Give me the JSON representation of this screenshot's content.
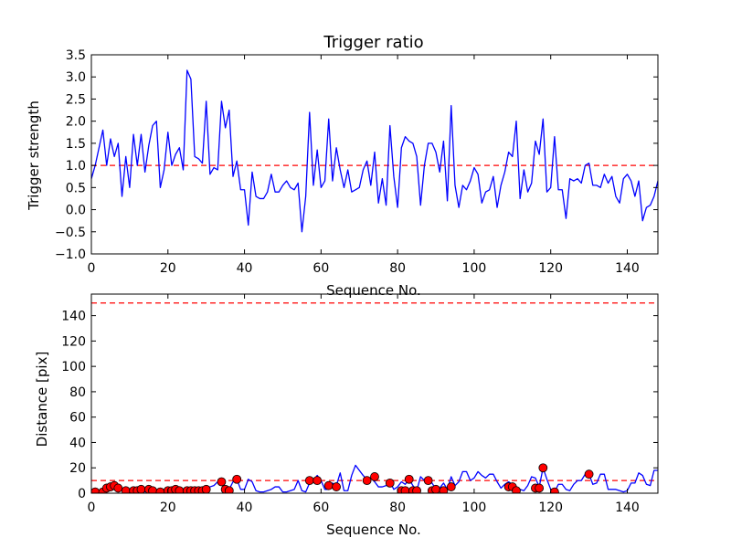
{
  "colors": {
    "series": "#0000ff",
    "threshold": "#ff0000",
    "marker_fill": "#ff0000",
    "marker_edge": "#000000",
    "axes": "#000000",
    "background": "#ffffff"
  },
  "chart_data": [
    {
      "type": "line",
      "title": "Trigger ratio",
      "xlabel": "Sequence No.",
      "ylabel": "Trigger strength",
      "xlim": [
        0,
        148
      ],
      "ylim": [
        -1.0,
        3.5
      ],
      "xticks": [
        0,
        20,
        40,
        60,
        80,
        100,
        120,
        140
      ],
      "xtick_labels": [
        "0",
        "20",
        "40",
        "60",
        "80",
        "100",
        "120",
        "140"
      ],
      "yticks": [
        -1.0,
        -0.5,
        0.0,
        0.5,
        1.0,
        1.5,
        2.0,
        2.5,
        3.0,
        3.5
      ],
      "ytick_labels": [
        "−1.0",
        "−0.5",
        "0.0",
        "0.5",
        "1.0",
        "1.5",
        "2.0",
        "2.5",
        "3.0",
        "3.5"
      ],
      "grid": false,
      "series": [
        {
          "x": [
            0,
            1,
            2,
            3,
            4,
            5,
            6,
            7,
            8,
            9,
            10,
            11,
            12,
            13,
            14,
            15,
            16,
            17,
            18,
            19,
            20,
            21,
            22,
            23,
            24,
            25,
            26,
            27,
            28,
            29,
            30,
            31,
            32,
            33,
            34,
            35,
            36,
            37,
            38,
            39,
            40,
            41,
            42,
            43,
            44,
            45,
            46,
            47,
            48,
            49,
            50,
            51,
            52,
            53,
            54,
            55,
            56,
            57,
            58,
            59,
            60,
            61,
            62,
            63,
            64,
            65,
            66,
            67,
            68,
            69,
            70,
            71,
            72,
            73,
            74,
            75,
            76,
            77,
            78,
            79,
            80,
            81,
            82,
            83,
            84,
            85,
            86,
            87,
            88,
            89,
            90,
            91,
            92,
            93,
            94,
            95,
            96,
            97,
            98,
            99,
            100,
            101,
            102,
            103,
            104,
            105,
            106,
            107,
            108,
            109,
            110,
            111,
            112,
            113,
            114,
            115,
            116,
            117,
            118,
            119,
            120,
            121,
            122,
            123,
            124,
            125,
            126,
            127,
            128,
            129,
            130,
            131,
            132,
            133,
            134,
            135,
            136,
            137,
            138,
            139,
            140,
            141,
            142,
            143,
            144,
            145,
            146,
            147,
            148
          ],
          "values": [
            0.7,
            1.0,
            1.4,
            1.8,
            1.0,
            1.6,
            1.2,
            1.5,
            0.3,
            1.2,
            0.5,
            1.7,
            1.0,
            1.7,
            0.85,
            1.45,
            1.9,
            2.0,
            0.5,
            0.9,
            1.75,
            1.0,
            1.25,
            1.4,
            0.9,
            3.15,
            2.95,
            1.2,
            1.15,
            1.05,
            2.45,
            0.8,
            0.95,
            0.9,
            2.45,
            1.85,
            2.25,
            0.75,
            1.1,
            0.45,
            0.45,
            -0.35,
            0.85,
            0.3,
            0.25,
            0.25,
            0.4,
            0.8,
            0.4,
            0.4,
            0.55,
            0.65,
            0.5,
            0.45,
            0.6,
            -0.5,
            0.3,
            2.2,
            0.55,
            1.35,
            0.5,
            0.65,
            2.05,
            0.65,
            1.4,
            0.9,
            0.5,
            0.9,
            0.4,
            0.45,
            0.5,
            0.9,
            1.1,
            0.55,
            1.3,
            0.15,
            0.7,
            0.1,
            1.9,
            0.75,
            0.05,
            1.4,
            1.65,
            1.55,
            1.5,
            1.2,
            0.1,
            1.0,
            1.5,
            1.5,
            1.3,
            0.85,
            1.55,
            0.2,
            2.35,
            0.55,
            0.05,
            0.55,
            0.45,
            0.65,
            0.95,
            0.8,
            0.15,
            0.4,
            0.45,
            0.75,
            0.05,
            0.55,
            0.85,
            1.3,
            1.2,
            2.0,
            0.25,
            0.9,
            0.4,
            0.6,
            1.55,
            1.25,
            2.05,
            0.4,
            0.5,
            1.65,
            0.45,
            0.45,
            -0.2,
            0.7,
            0.65,
            0.7,
            0.6,
            1.0,
            1.05,
            0.55,
            0.55,
            0.5,
            0.8,
            0.6,
            0.75,
            0.3,
            0.15,
            0.7,
            0.8,
            0.65,
            0.3,
            0.65,
            -0.25,
            0.05,
            0.1,
            0.3,
            0.65
          ]
        }
      ],
      "reference_lines": [
        {
          "y": 1.0,
          "style": "dashed",
          "color": "#ff0000"
        }
      ]
    },
    {
      "type": "line",
      "title": "",
      "xlabel": "Sequence No.",
      "ylabel": "Distance [pix]",
      "xlim": [
        0,
        148
      ],
      "ylim": [
        0,
        157
      ],
      "xticks": [
        0,
        20,
        40,
        60,
        80,
        100,
        120,
        140
      ],
      "xtick_labels": [
        "0",
        "20",
        "40",
        "60",
        "80",
        "100",
        "120",
        "140"
      ],
      "yticks": [
        0,
        20,
        40,
        60,
        80,
        100,
        120,
        140
      ],
      "ytick_labels": [
        "0",
        "20",
        "40",
        "60",
        "80",
        "100",
        "120",
        "140"
      ],
      "grid": false,
      "series": [
        {
          "x": [
            0,
            1,
            2,
            3,
            4,
            5,
            6,
            7,
            8,
            9,
            10,
            11,
            12,
            13,
            14,
            15,
            16,
            17,
            18,
            19,
            20,
            21,
            22,
            23,
            24,
            25,
            26,
            27,
            28,
            29,
            30,
            31,
            32,
            33,
            34,
            35,
            36,
            37,
            38,
            39,
            40,
            41,
            42,
            43,
            44,
            45,
            46,
            47,
            48,
            49,
            50,
            51,
            52,
            53,
            54,
            55,
            56,
            57,
            58,
            59,
            60,
            61,
            62,
            63,
            64,
            65,
            66,
            67,
            68,
            69,
            70,
            71,
            72,
            73,
            74,
            75,
            76,
            77,
            78,
            79,
            80,
            81,
            82,
            83,
            84,
            85,
            86,
            87,
            88,
            89,
            90,
            91,
            92,
            93,
            94,
            95,
            96,
            97,
            98,
            99,
            100,
            101,
            102,
            103,
            104,
            105,
            106,
            107,
            108,
            109,
            110,
            111,
            112,
            113,
            114,
            115,
            116,
            117,
            118,
            119,
            120,
            121,
            122,
            123,
            124,
            125,
            126,
            127,
            128,
            129,
            130,
            131,
            132,
            133,
            134,
            135,
            136,
            137,
            138,
            139,
            140,
            141,
            142,
            143,
            144,
            145,
            146,
            147,
            148
          ],
          "values": [
            1,
            1,
            1,
            3,
            5,
            6,
            5,
            4,
            3,
            1,
            2,
            3,
            2,
            3,
            1,
            2,
            3,
            2,
            2,
            1,
            2,
            1,
            2,
            3,
            2,
            2,
            3,
            2,
            2,
            3,
            4,
            5,
            6,
            9,
            9,
            3,
            3,
            9,
            11,
            3,
            3,
            11,
            9,
            2,
            1,
            1,
            2,
            3,
            5,
            5,
            1,
            1,
            2,
            3,
            10,
            2,
            1,
            8,
            10,
            14,
            10,
            3,
            3,
            8,
            6,
            16,
            2,
            2,
            14,
            22,
            18,
            14,
            11,
            12,
            9,
            5,
            5,
            6,
            9,
            3,
            5,
            9,
            7,
            11,
            6,
            2,
            13,
            10,
            10,
            8,
            3,
            4,
            8,
            3,
            13,
            6,
            9,
            17,
            17,
            10,
            12,
            17,
            14,
            12,
            15,
            15,
            9,
            4,
            7,
            9,
            7,
            1,
            3,
            2,
            6,
            13,
            12,
            5,
            20,
            11,
            3,
            1,
            7,
            7,
            3,
            2,
            7,
            10,
            10,
            15,
            15,
            7,
            8,
            15,
            15,
            3,
            3,
            3,
            2,
            1,
            2,
            8,
            8,
            16,
            14,
            7,
            6,
            18,
            18
          ]
        },
        {
          "name": "",
          "style": "markers",
          "x": [
            1,
            3,
            4,
            5,
            6,
            7,
            9,
            11,
            12,
            13,
            15,
            16,
            18,
            20,
            21,
            22,
            23,
            25,
            26,
            27,
            28,
            29,
            30,
            34,
            35,
            36,
            38,
            57,
            59,
            62,
            64,
            72,
            74,
            78,
            81,
            82,
            83,
            84,
            85,
            88,
            89,
            90,
            92,
            94,
            109,
            110,
            111,
            116,
            117,
            118,
            121,
            130
          ],
          "values": [
            1,
            1,
            4,
            5,
            6,
            4,
            2,
            2,
            2,
            3,
            3,
            2,
            1,
            2,
            2,
            3,
            2,
            2,
            2,
            2,
            2,
            2,
            3,
            9,
            3,
            2,
            11,
            10,
            10,
            6,
            5,
            10,
            13,
            8,
            2,
            2,
            11,
            2,
            2,
            10,
            2,
            3,
            2,
            5,
            5,
            5,
            2,
            4,
            4,
            20,
            1,
            15
          ]
        }
      ],
      "reference_lines": [
        {
          "y": 150,
          "style": "dashed",
          "color": "#ff0000"
        },
        {
          "y": 10,
          "style": "dashed",
          "color": "#ff0000"
        }
      ]
    }
  ]
}
